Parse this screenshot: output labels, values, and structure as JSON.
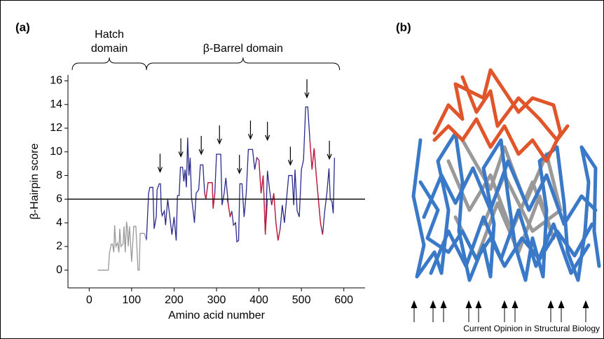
{
  "figure": {
    "panel_labels": [
      "(a)",
      "(b)"
    ],
    "credit": "Current Opinion in Structural Biology"
  },
  "chart_data": {
    "type": "line",
    "xlabel": "Amino acid number",
    "ylabel": "β-Hairpin score",
    "xlim": [
      -50,
      650
    ],
    "xticks": [
      0,
      100,
      200,
      300,
      400,
      500,
      600
    ],
    "ylim": [
      -1.5,
      16.5
    ],
    "yticks": [
      0,
      2,
      4,
      6,
      8,
      10,
      12,
      14,
      16
    ],
    "hline": 6,
    "annotations": [
      {
        "lines": [
          "Hatch",
          "domain"
        ],
        "x": [
          -40,
          135
        ]
      },
      {
        "lines": [
          "β-Barrel domain"
        ],
        "x": [
          135,
          590
        ]
      }
    ],
    "arrows": {
      "x": [
        167,
        216,
        264,
        307,
        354,
        380,
        420,
        474,
        513,
        566
      ],
      "y": [
        8.3,
        9.6,
        9.8,
        10.7,
        8.2,
        11.1,
        11.0,
        8.9,
        14.6,
        9.4
      ]
    },
    "series": [
      {
        "color": "#999999",
        "x": [
          20,
          45,
          48,
          52,
          55,
          58,
          60,
          63,
          67,
          70,
          72,
          75,
          80,
          82,
          85,
          88,
          90,
          92,
          95,
          100,
          105,
          110,
          115,
          118,
          120,
          130,
          135
        ],
        "values": [
          0,
          0,
          1.5,
          2.2,
          2.2,
          1.5,
          3.8,
          2,
          2.3,
          1.5,
          3.5,
          2,
          2.2,
          3.7,
          1.5,
          4.1,
          3.5,
          2,
          3.7,
          0.7,
          3.7,
          3.7,
          0,
          0,
          3.1,
          3.1,
          2.5
        ]
      },
      {
        "color": "#2a2a8c",
        "x": [
          135,
          140,
          143,
          150,
          153,
          158,
          160,
          165,
          168,
          170,
          172,
          177,
          180,
          185,
          190,
          195,
          200,
          205,
          208,
          212,
          215,
          220,
          223,
          226,
          229,
          232,
          235,
          238,
          241,
          245,
          248,
          252,
          258,
          262,
          268,
          272,
          275,
          280,
          290,
          292,
          296,
          300,
          310,
          313,
          318,
          322,
          328,
          332,
          336,
          340,
          345,
          348,
          352,
          355,
          360,
          365,
          370,
          375,
          385,
          390,
          395,
          400,
          405,
          410,
          415,
          420,
          425,
          430,
          435,
          440,
          445,
          450,
          455,
          460,
          465,
          470,
          478,
          482,
          485,
          490,
          495,
          500,
          505,
          510,
          515,
          520,
          525,
          530,
          535,
          540,
          545,
          550,
          555,
          560,
          565,
          568,
          572,
          575,
          578
        ],
        "values": [
          2.6,
          6.5,
          7.0,
          7.0,
          3.5,
          4.5,
          6.8,
          7.3,
          7.3,
          5.0,
          4.6,
          5.0,
          3.8,
          6.0,
          4.5,
          3.0,
          4.5,
          2.5,
          6.3,
          6.3,
          8.7,
          8.7,
          7.5,
          8.5,
          7.0,
          11.2,
          8.0,
          9.5,
          6.2,
          5.0,
          4.0,
          6.5,
          6.8,
          8.9,
          8.9,
          6.5,
          6.0,
          7.4,
          7.4,
          5.2,
          6.5,
          9.8,
          9.8,
          5.5,
          6.5,
          7.8,
          5.5,
          4.5,
          5.0,
          3.8,
          4.0,
          2.4,
          2.5,
          7.3,
          7.3,
          4.5,
          6.5,
          10.2,
          10.2,
          8.5,
          9.5,
          9.3,
          6.5,
          8.0,
          3.0,
          8.4,
          6.8,
          5.5,
          6.5,
          4.0,
          2.5,
          3.5,
          5.5,
          4.0,
          6.0,
          8.0,
          8.0,
          5.5,
          8.5,
          5.0,
          4.5,
          8.5,
          9.3,
          13.8,
          13.8,
          11.0,
          8.5,
          10.3,
          8.0,
          6.0,
          4.0,
          3.0,
          5.0,
          6.5,
          8.6,
          6.0,
          5.8,
          4.8,
          9.5
        ]
      },
      {
        "color": "#cc1a3a",
        "x": [
          272,
          275,
          280,
          290,
          292,
          296,
          null,
          325,
          328,
          332,
          336,
          null,
          395,
          400,
          405,
          410,
          415,
          420,
          null,
          430,
          435,
          440,
          445,
          450,
          null,
          520,
          525,
          530,
          535,
          540,
          545,
          550
        ],
        "values": [
          6.5,
          6.0,
          7.4,
          7.4,
          5.2,
          6.5,
          null,
          6.0,
          5.5,
          4.5,
          5.0,
          null,
          9.5,
          9.3,
          6.5,
          8.0,
          3.0,
          6.0,
          null,
          5.5,
          6.5,
          4.0,
          2.5,
          3.5,
          null,
          11.0,
          8.5,
          10.3,
          8.0,
          6.0,
          4.0,
          3.0
        ]
      }
    ]
  }
}
